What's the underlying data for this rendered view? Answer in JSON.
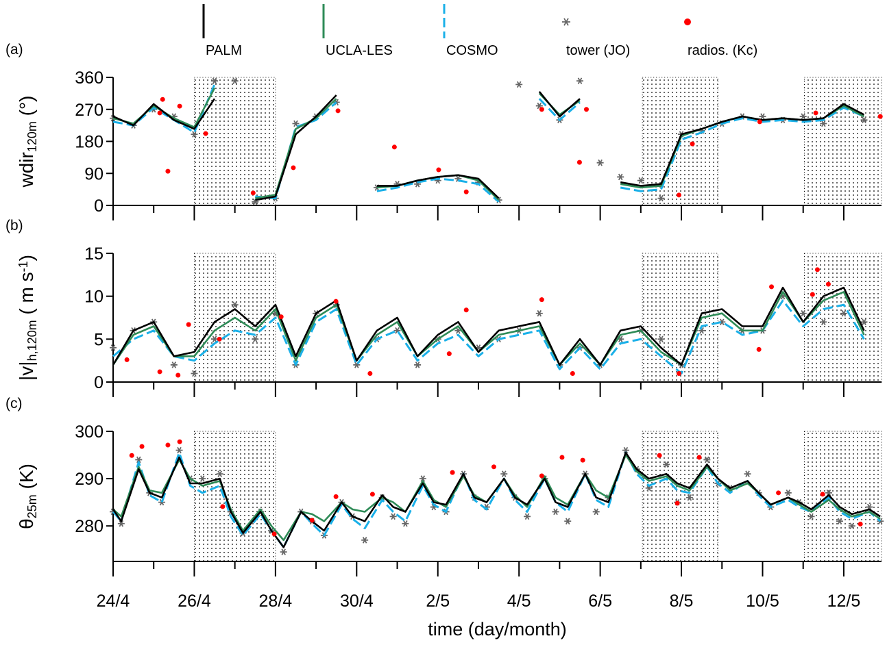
{
  "chart_data": [
    {
      "type": "line",
      "label": "(a)",
      "ylabel": [
        {
          "text": "wdir"
        },
        {
          "text": "120m",
          "style": "sub"
        },
        {
          "text": " (°)"
        }
      ],
      "x": [
        0,
        0.5,
        1,
        1.5,
        2,
        2.5,
        3,
        3.5,
        4,
        4.5,
        5,
        5.5,
        6,
        6.5,
        7,
        7.5,
        8,
        8.5,
        9,
        9.5,
        10,
        10.5,
        11,
        11.5,
        12,
        12.5,
        13,
        13.5,
        14,
        14.5,
        15,
        15.5,
        16,
        16.5,
        17,
        17.5,
        18,
        18.5
      ],
      "xlim": [
        0,
        18.93
      ],
      "xticks": [
        0,
        2,
        4,
        6,
        8,
        10,
        12,
        14,
        16,
        18
      ],
      "xminor": [
        1,
        3,
        5,
        7,
        9,
        11,
        13,
        15,
        17
      ],
      "ylim": [
        0,
        360
      ],
      "yticks": [
        0,
        90,
        180,
        270,
        360
      ],
      "shaded": [
        [
          2,
          4
        ],
        [
          13.04,
          14.9
        ],
        [
          17.03,
          18.93
        ]
      ],
      "series": [
        {
          "name": "PALM",
          "color": "#000000",
          "style": "solid",
          "values": [
            250,
            225,
            285,
            240,
            215,
            300,
            null,
            15,
            25,
            200,
            250,
            310,
            null,
            55,
            55,
            70,
            80,
            85,
            75,
            20,
            null,
            320,
            250,
            300,
            null,
            65,
            55,
            60,
            200,
            215,
            235,
            250,
            240,
            245,
            240,
            245,
            285,
            255
          ]
        },
        {
          "name": "UCLA-LES",
          "color": "#2e8b57",
          "style": "solid",
          "values": [
            245,
            230,
            280,
            245,
            220,
            330,
            null,
            20,
            30,
            215,
            245,
            300,
            null,
            50,
            55,
            70,
            80,
            85,
            70,
            15,
            null,
            315,
            255,
            295,
            null,
            60,
            50,
            55,
            195,
            215,
            235,
            250,
            240,
            245,
            240,
            245,
            280,
            250
          ]
        },
        {
          "name": "COSMO",
          "color": "#1ab0e8",
          "style": "dashed",
          "values": [
            235,
            225,
            275,
            240,
            205,
            340,
            null,
            25,
            20,
            220,
            240,
            290,
            null,
            40,
            50,
            65,
            75,
            70,
            60,
            10,
            null,
            300,
            240,
            290,
            null,
            50,
            40,
            45,
            185,
            205,
            230,
            245,
            235,
            240,
            235,
            240,
            275,
            250
          ]
        },
        {
          "name": "tower (JO)",
          "type": "scatter",
          "marker": "asterisk",
          "color": "#666666",
          "values": [
            245,
            225,
            270,
            250,
            200,
            350,
            350,
            10,
            20,
            230,
            250,
            290,
            null,
            50,
            60,
            60,
            70,
            75,
            65,
            15,
            340,
            280,
            240,
            350,
            120,
            80,
            70,
            20,
            200,
            210,
            230,
            250,
            250,
            240,
            250,
            230,
            280,
            240
          ]
        },
        {
          "name": "radios. (Kc)",
          "type": "scatter",
          "marker": "dot",
          "color": "#ff0000",
          "x": [
            1.22,
            1.15,
            1.35,
            1.64,
            2.28,
            3.45,
            4.44,
            5.54,
            6.93,
            8.02,
            8.7,
            10.56,
            11.49,
            11.66,
            13.94,
            14.27,
            15.93,
            17.31,
            18.9
          ],
          "values": [
            298,
            260,
            96,
            279,
            202,
            35,
            106,
            266,
            164,
            100,
            38,
            270,
            121,
            270,
            29,
            173,
            235,
            260,
            250
          ]
        }
      ]
    },
    {
      "type": "line",
      "label": "(b)",
      "ylabel": [
        {
          "text": "|v|"
        },
        {
          "text": "h,120m",
          "style": "sub"
        },
        {
          "text": " ( m s"
        },
        {
          "text": "-1",
          "style": "sup"
        },
        {
          "text": ")"
        }
      ],
      "x": [
        0,
        0.5,
        1,
        1.5,
        2,
        2.5,
        3,
        3.5,
        4,
        4.5,
        5,
        5.5,
        6,
        6.5,
        7,
        7.5,
        8,
        8.5,
        9,
        9.5,
        10,
        10.5,
        11,
        11.5,
        12,
        12.5,
        13,
        13.5,
        14,
        14.5,
        15,
        15.5,
        16,
        16.5,
        17,
        17.5,
        18,
        18.5
      ],
      "xlim": [
        0,
        18.93
      ],
      "xticks": [
        0,
        2,
        4,
        6,
        8,
        10,
        12,
        14,
        16,
        18
      ],
      "xminor": [
        1,
        3,
        5,
        7,
        9,
        11,
        13,
        15,
        17
      ],
      "ylim": [
        0,
        15
      ],
      "yticks": [
        0,
        5,
        10,
        15
      ],
      "shaded": [
        [
          2,
          4
        ],
        [
          13.04,
          14.9
        ],
        [
          17.03,
          18.93
        ]
      ],
      "series": [
        {
          "color": "#000000",
          "style": "solid",
          "values": [
            2,
            6,
            7,
            3,
            3.5,
            7,
            8.5,
            6.5,
            9,
            3,
            8,
            9.5,
            2.5,
            6,
            7.5,
            3,
            5.5,
            7,
            3.5,
            6,
            6.5,
            7,
            2,
            5,
            2,
            6,
            6.5,
            4,
            2,
            8,
            8.5,
            6.5,
            6.5,
            11,
            7,
            10,
            11,
            6
          ]
        },
        {
          "color": "#2e8b57",
          "style": "solid",
          "values": [
            2,
            5.5,
            6.5,
            3,
            3,
            6,
            7.5,
            6,
            8.5,
            2.5,
            7.5,
            9,
            2.5,
            5.5,
            7,
            3,
            5,
            6.5,
            3.5,
            5.5,
            6,
            6.5,
            2,
            4.5,
            2,
            5.5,
            6,
            3.5,
            2,
            7.5,
            8,
            6,
            6,
            10.5,
            7,
            9.5,
            10.5,
            5.5
          ]
        },
        {
          "color": "#1ab0e8",
          "style": "dashed",
          "values": [
            3,
            5,
            6,
            3,
            2.5,
            4.5,
            6,
            5.5,
            7.5,
            2,
            7,
            8.5,
            2,
            5,
            6,
            2.5,
            4.5,
            5.5,
            3,
            5,
            5.5,
            6,
            1.5,
            4,
            1.5,
            4.5,
            5,
            3,
            1,
            6.5,
            7,
            5.5,
            6,
            9.5,
            6.5,
            8.5,
            9,
            5
          ]
        },
        {
          "type": "scatter",
          "marker": "asterisk",
          "color": "#666666",
          "values": [
            4,
            6,
            7,
            2,
            1,
            5,
            9,
            5,
            8,
            2,
            8,
            9,
            2,
            5,
            6,
            2,
            5,
            6,
            4,
            5,
            6,
            8,
            2,
            4,
            2,
            5,
            6,
            5,
            2,
            6,
            7,
            6,
            6,
            10,
            8,
            7,
            8,
            7
          ]
        },
        {
          "type": "scatter",
          "marker": "dot",
          "color": "#ff0000",
          "x": [
            0.34,
            1.15,
            1.6,
            1.86,
            2.62,
            4.14,
            5.49,
            6.33,
            8.28,
            8.7,
            10.56,
            11.32,
            13.94,
            15.91,
            16.22,
            17.23,
            17.35,
            17.62
          ],
          "values": [
            2.6,
            1.2,
            0.8,
            6.7,
            5.0,
            7.6,
            9.4,
            1.0,
            3.3,
            8.4,
            9.6,
            1.0,
            1.0,
            3.8,
            11.1,
            10.2,
            13.1,
            11.4
          ]
        }
      ]
    },
    {
      "type": "line",
      "label": "(c)",
      "ylabel": [
        {
          "text": "θ"
        },
        {
          "text": "25m",
          "style": "sub"
        },
        {
          "text": " (K)"
        }
      ],
      "xlabel": "time (day/month)",
      "x": [
        0,
        0.2,
        0.63,
        0.9,
        1.2,
        1.63,
        1.9,
        2.2,
        2.63,
        2.9,
        3.2,
        3.63,
        3.9,
        4.2,
        4.63,
        4.9,
        5.2,
        5.63,
        5.9,
        6.2,
        6.63,
        6.9,
        7.2,
        7.63,
        7.9,
        8.2,
        8.63,
        8.9,
        9.2,
        9.63,
        9.9,
        10.2,
        10.63,
        10.9,
        11.2,
        11.63,
        11.9,
        12.2,
        12.63,
        12.9,
        13.2,
        13.63,
        13.9,
        14.2,
        14.63,
        14.9,
        15.2,
        15.63,
        15.9,
        16.2,
        16.63,
        16.9,
        17.2,
        17.63,
        17.9,
        18.2,
        18.63,
        18.9
      ],
      "xlim": [
        0,
        18.93
      ],
      "xticks": [
        {
          "value": 0,
          "label": "24/4"
        },
        {
          "value": 2,
          "label": "26/4"
        },
        {
          "value": 4,
          "label": "28/4"
        },
        {
          "value": 6,
          "label": "30/4"
        },
        {
          "value": 8,
          "label": "2/5"
        },
        {
          "value": 10,
          "label": "4/5"
        },
        {
          "value": 12,
          "label": "6/5"
        },
        {
          "value": 14,
          "label": "8/5"
        },
        {
          "value": 16,
          "label": "10/5"
        },
        {
          "value": 18,
          "label": "12/5"
        }
      ],
      "xminor": [
        1,
        3,
        5,
        7,
        9,
        11,
        13,
        15,
        17
      ],
      "ylim": [
        272.5,
        300
      ],
      "yticks": [
        280,
        290,
        300
      ],
      "shaded": [
        [
          2,
          4
        ],
        [
          13.04,
          14.9
        ],
        [
          17.03,
          18.93
        ]
      ],
      "series": [
        {
          "color": "#000000",
          "style": "solid",
          "values": [
            283.5,
            281,
            292,
            287,
            286,
            294.5,
            289,
            289,
            290,
            283,
            278.5,
            283,
            279,
            275.5,
            283,
            281,
            279,
            285,
            282,
            281,
            286.5,
            284,
            283,
            289,
            285,
            284.5,
            291,
            286,
            285,
            290,
            286,
            284.5,
            290,
            285,
            284,
            291,
            286,
            285,
            295.5,
            292,
            290,
            291,
            289,
            288,
            293,
            290,
            288,
            289.5,
            287,
            284.5,
            286,
            285,
            283.5,
            286.5,
            284,
            282.5,
            283.5,
            282
          ]
        },
        {
          "color": "#2e8b57",
          "style": "solid",
          "values": [
            283.5,
            282,
            292.5,
            287.5,
            287,
            294,
            290,
            288.5,
            289.5,
            283.5,
            279,
            283.5,
            280,
            277,
            283,
            282.5,
            281,
            285,
            283.5,
            283,
            286,
            285,
            283,
            289.5,
            285.5,
            284,
            290.5,
            286.5,
            285,
            290,
            286.5,
            284,
            290.5,
            286,
            284.5,
            291,
            287.5,
            286,
            295,
            291.5,
            289.5,
            290.5,
            288.5,
            287.5,
            292.5,
            290,
            287.5,
            289,
            287,
            284.5,
            286,
            284.5,
            283,
            285.5,
            283.5,
            282,
            283,
            281.5
          ]
        },
        {
          "color": "#1ab0e8",
          "style": "dashed",
          "values": [
            283,
            281,
            293.5,
            286.5,
            285,
            295.5,
            288.5,
            287,
            288.5,
            282,
            278,
            282.5,
            279,
            275.5,
            283,
            280.5,
            278,
            284.5,
            281.5,
            279.5,
            285.5,
            283,
            281,
            288.5,
            284.5,
            283,
            291,
            285.5,
            283.5,
            290,
            285.5,
            283,
            290,
            285,
            283,
            291,
            285.5,
            284,
            295.5,
            291,
            288.5,
            290,
            287.5,
            287,
            292.5,
            289,
            287,
            289.5,
            286.5,
            284,
            285.5,
            284,
            283,
            286,
            283,
            281.5,
            283,
            281
          ]
        },
        {
          "type": "scatter",
          "marker": "asterisk",
          "color": "#666666",
          "values": [
            283,
            280.5,
            294,
            287,
            285,
            296,
            290,
            290,
            291,
            283,
            278.5,
            283,
            279,
            274.5,
            283,
            281,
            278,
            285,
            282,
            277,
            286,
            282,
            280.5,
            290,
            284,
            283,
            291,
            286,
            284,
            291,
            286,
            282,
            290,
            283,
            281,
            291,
            283,
            286,
            296,
            292,
            288,
            293,
            285,
            286,
            294,
            289,
            288,
            291,
            287,
            284,
            287,
            285,
            282,
            287,
            281,
            280,
            284,
            281
          ]
        },
        {
          "type": "scatter",
          "marker": "dot",
          "color": "#ff0000",
          "x": [
            0.46,
            0.71,
            1.35,
            1.64,
            2.7,
            3.97,
            4.9,
            5.49,
            6.39,
            8.36,
            9.38,
            10.56,
            11.06,
            11.57,
            13.46,
            13.9,
            14.44,
            16.39,
            17.48,
            18.41
          ],
          "values": [
            294.9,
            296.8,
            297.1,
            297.8,
            284.1,
            278.3,
            281.2,
            286.2,
            286.7,
            291.3,
            292.5,
            290.6,
            294.5,
            293.9,
            294.9,
            284.8,
            294.5,
            287.0,
            286.7,
            280.4
          ]
        }
      ]
    }
  ]
}
